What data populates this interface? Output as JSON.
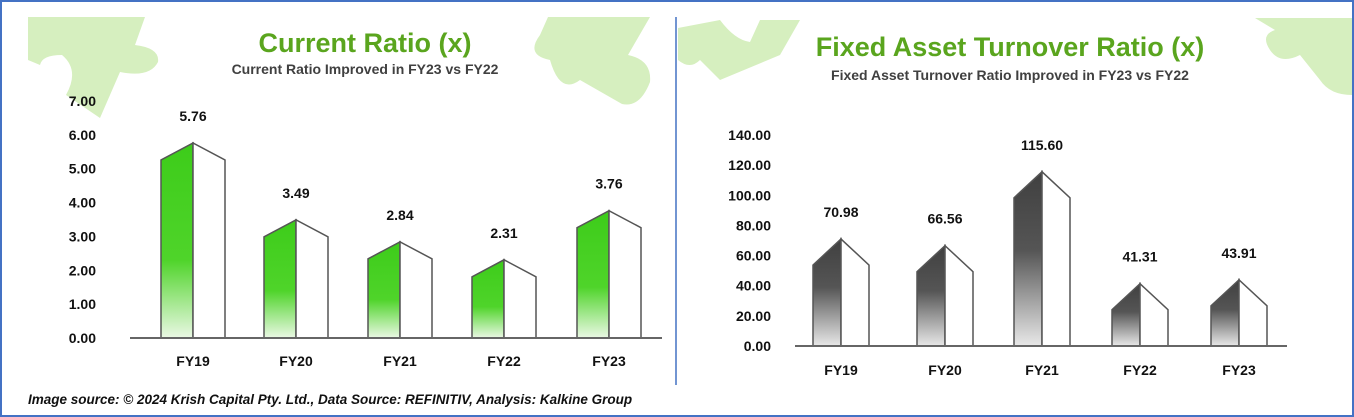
{
  "source_note": "Image source: © 2024 Krish Capital Pty. Ltd., Data Source: REFINITIV, Analysis: Kalkine Group",
  "chart_data": [
    {
      "type": "bar",
      "title": "Current Ratio (x)",
      "subtitle": "Current Ratio Improved in FY23 vs FY22",
      "categories": [
        "FY19",
        "FY20",
        "FY21",
        "FY22",
        "FY23"
      ],
      "values": [
        5.76,
        3.49,
        2.84,
        2.31,
        3.76
      ],
      "value_labels": [
        "5.76",
        "3.49",
        "2.84",
        "2.31",
        "3.76"
      ],
      "ylim": [
        0,
        7
      ],
      "yticks": [
        "0.00",
        "1.00",
        "2.00",
        "3.00",
        "4.00",
        "5.00",
        "6.00",
        "7.00"
      ],
      "xlabel": "",
      "ylabel": "",
      "grid": false,
      "bar_color": "#3dcc1a"
    },
    {
      "type": "bar",
      "title": "Fixed Asset Turnover Ratio (x)",
      "subtitle": "Fixed Asset Turnover Ratio Improved in FY23 vs FY22",
      "categories": [
        "FY19",
        "FY20",
        "FY21",
        "FY22",
        "FY23"
      ],
      "values": [
        70.98,
        66.56,
        115.6,
        41.31,
        43.91
      ],
      "value_labels": [
        "70.98",
        "66.56",
        "115.60",
        "41.31",
        "43.91"
      ],
      "ylim": [
        0,
        140
      ],
      "yticks": [
        "0.00",
        "20.00",
        "40.00",
        "60.00",
        "80.00",
        "100.00",
        "120.00",
        "140.00"
      ],
      "xlabel": "",
      "ylabel": "",
      "grid": false,
      "bar_color": "#404040"
    }
  ]
}
